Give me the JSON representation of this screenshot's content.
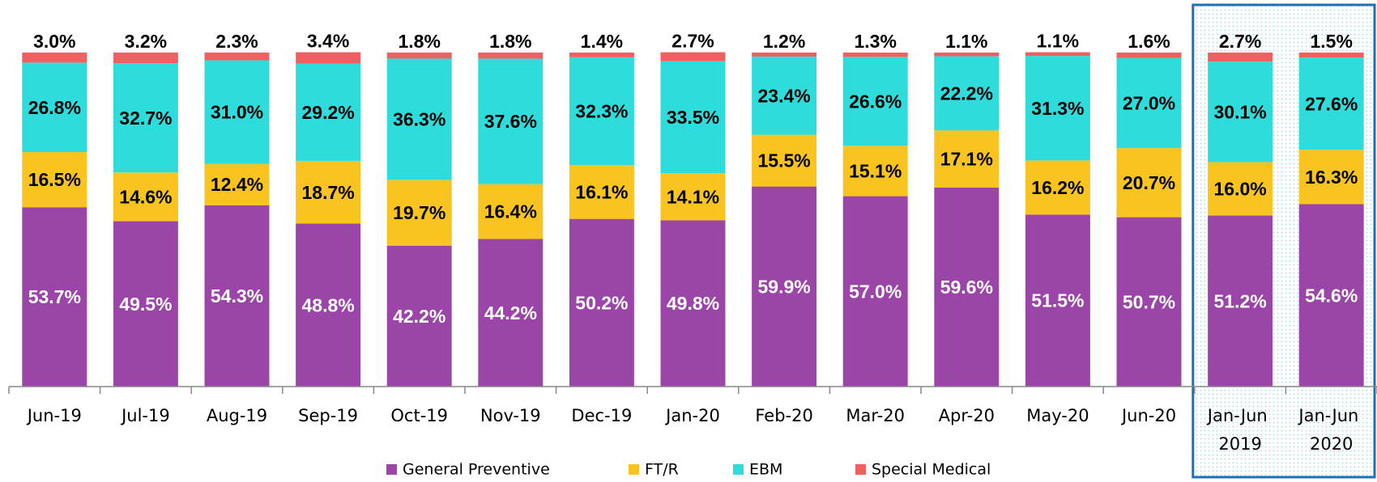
{
  "chart_data": {
    "type": "stacked_bar",
    "categories": [
      "Jun-19",
      "Jul-19",
      "Aug-19",
      "Sep-19",
      "Oct-19",
      "Nov-19",
      "Dec-19",
      "Jan-20",
      "Feb-20",
      "Mar-20",
      "Apr-20",
      "May-20",
      "Jun-20",
      "Jan-Jun 2019",
      "Jan-Jun 2020"
    ],
    "ylim": [
      0,
      100
    ],
    "series": [
      {
        "name": "General Preventive",
        "color": "#9b45a8",
        "label_color": "#ffffff",
        "values": [
          53.7,
          49.5,
          54.3,
          48.8,
          42.2,
          44.2,
          50.2,
          49.8,
          59.9,
          57.0,
          59.6,
          51.5,
          50.7,
          51.2,
          54.6
        ],
        "value_labels": [
          "53.7%",
          "49.5%",
          "54.3%",
          "48.8%",
          "42.2%",
          "44.2%",
          "50.2%",
          "49.8%",
          "59.9%",
          "57.0%",
          "59.6%",
          "51.5%",
          "50.7%",
          "51.2%",
          "54.6%"
        ]
      },
      {
        "name": "FT/R",
        "color": "#f9c320",
        "label_color": "#000000",
        "values": [
          16.5,
          14.6,
          12.4,
          18.7,
          19.7,
          16.4,
          16.1,
          14.1,
          15.5,
          15.1,
          17.1,
          16.2,
          20.7,
          16.0,
          16.3
        ],
        "value_labels": [
          "16.5%",
          "14.6%",
          "12.4%",
          "18.7%",
          "19.7%",
          "16.4%",
          "16.1%",
          "14.1%",
          "15.5%",
          "15.1%",
          "17.1%",
          "16.2%",
          "20.7%",
          "16.0%",
          "16.3%"
        ]
      },
      {
        "name": "EBM",
        "color": "#2edcdc",
        "label_color": "#000000",
        "values": [
          26.8,
          32.7,
          31.0,
          29.2,
          36.3,
          37.6,
          32.3,
          33.5,
          23.4,
          26.6,
          22.2,
          31.3,
          27.0,
          30.1,
          27.6
        ],
        "value_labels": [
          "26.8%",
          "32.7%",
          "31.0%",
          "29.2%",
          "36.3%",
          "37.6%",
          "32.3%",
          "33.5%",
          "23.4%",
          "26.6%",
          "22.2%",
          "31.3%",
          "27.0%",
          "30.1%",
          "27.6%"
        ]
      },
      {
        "name": "Special Medical",
        "color": "#f06060",
        "label_color": "#000000",
        "values": [
          3.0,
          3.2,
          2.3,
          3.4,
          1.8,
          1.8,
          1.4,
          2.7,
          1.2,
          1.3,
          1.1,
          1.1,
          1.6,
          2.7,
          1.5
        ],
        "value_labels": [
          "3.0%",
          "3.2%",
          "2.3%",
          "3.4%",
          "1.8%",
          "1.8%",
          "1.4%",
          "2.7%",
          "1.2%",
          "1.3%",
          "1.1%",
          "1.1%",
          "1.6%",
          "2.7%",
          "1.5%"
        ]
      }
    ]
  }
}
